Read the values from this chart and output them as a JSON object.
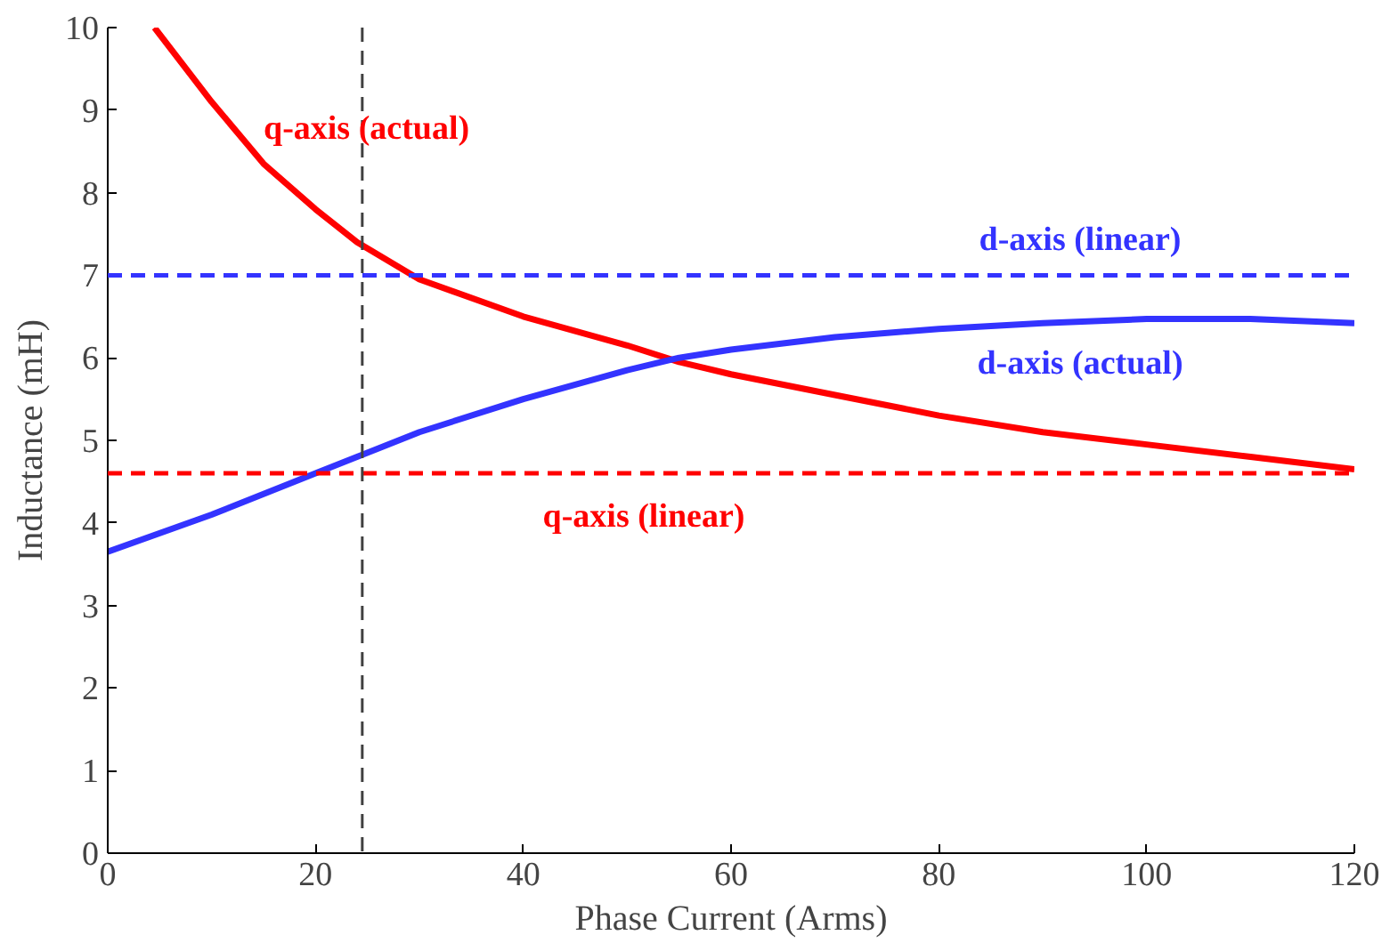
{
  "chart_data": {
    "type": "line",
    "xlabel": "Phase Current (Arms)",
    "ylabel": "Inductance (mH)",
    "xlim": [
      0,
      120
    ],
    "xticks": [
      0,
      20,
      40,
      60,
      80,
      100,
      120
    ],
    "ylim": [
      0,
      10
    ],
    "yticks": [
      0,
      1,
      2,
      3,
      4,
      5,
      6,
      7,
      8,
      9,
      10
    ],
    "grid": false,
    "marker": "none",
    "line_style": "solid",
    "series": [
      {
        "name": "q-axis (actual)",
        "color": "#ff0000",
        "x": [
          4.5,
          10,
          15,
          20,
          24,
          30,
          40,
          50,
          55,
          60,
          70,
          80,
          90,
          100,
          110,
          120
        ],
        "values": [
          10,
          9.1,
          8.35,
          7.8,
          7.4,
          6.95,
          6.5,
          6.15,
          5.95,
          5.8,
          5.55,
          5.3,
          5.1,
          4.95,
          4.8,
          4.65
        ]
      },
      {
        "name": "d-axis (actual)",
        "color": "#3333ff",
        "x": [
          0,
          10,
          20,
          24,
          30,
          40,
          50,
          55,
          60,
          70,
          80,
          90,
          100,
          110,
          120
        ],
        "values": [
          3.65,
          4.1,
          4.6,
          4.8,
          5.1,
          5.5,
          5.85,
          6.0,
          6.1,
          6.25,
          6.35,
          6.42,
          6.47,
          6.47,
          6.42
        ]
      }
    ],
    "ref_lines": [
      {
        "axis": "y",
        "value": 7,
        "label": "d-axis (linear)",
        "color": "#3333ff",
        "line_style": "dashed"
      },
      {
        "axis": "y",
        "value": 4.6,
        "label": "q-axis (linear)",
        "color": "#ff0000",
        "line_style": "dashed"
      },
      {
        "axis": "x",
        "value": 24.5,
        "color": "#404040",
        "line_style": "dashed"
      }
    ]
  }
}
